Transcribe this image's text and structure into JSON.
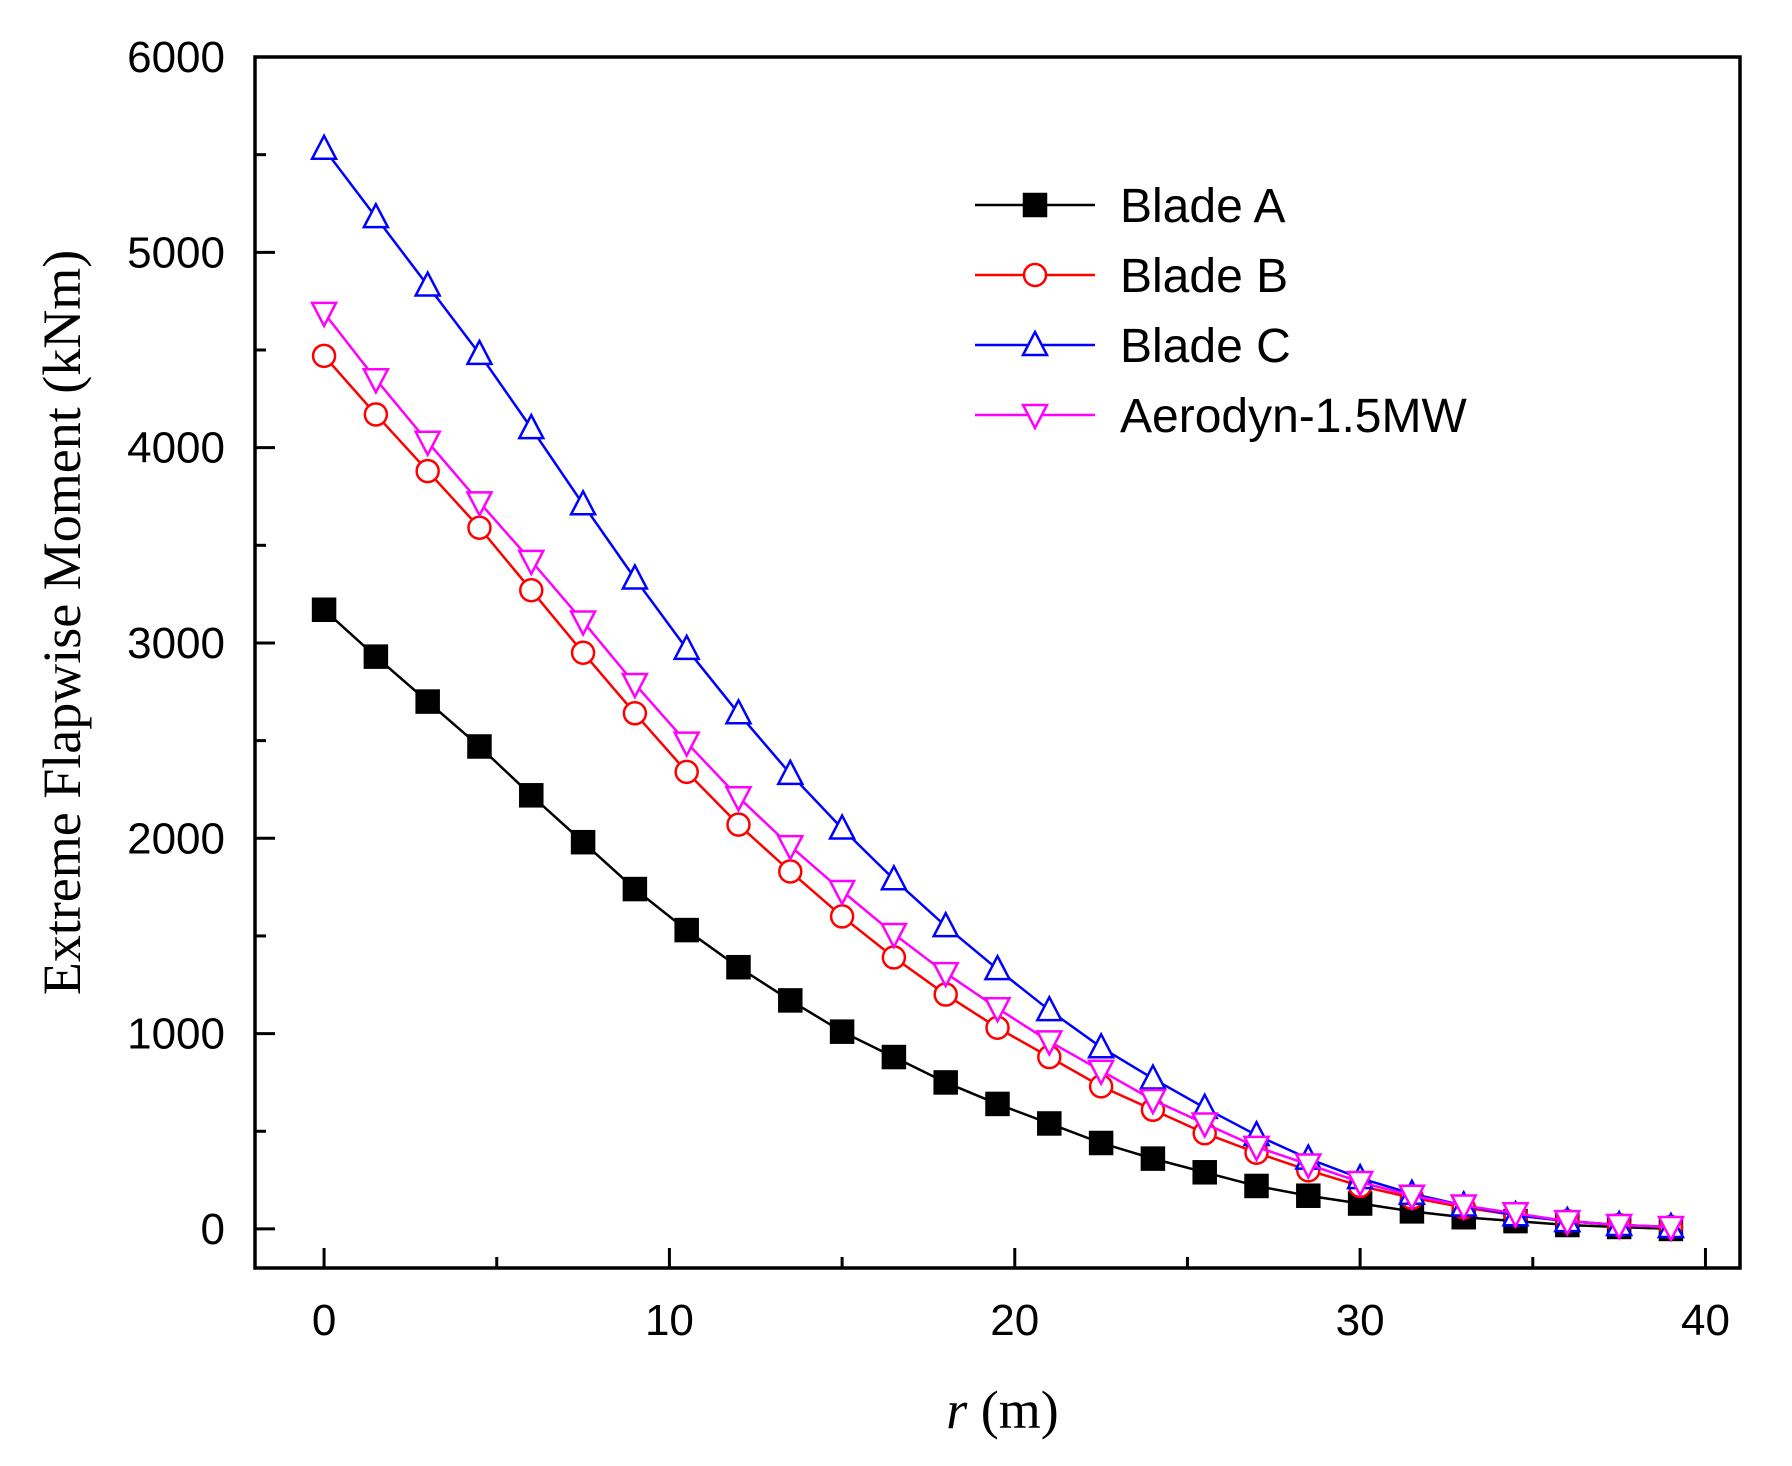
{
  "chart_data": {
    "type": "line",
    "title": "",
    "xlabel_var": "r",
    "xlabel_unit": " (m)",
    "ylabel": "Extreme Flapwise Moment (kNm)",
    "xlim": [
      -2,
      41
    ],
    "ylim": [
      -200,
      6000
    ],
    "xticks": [
      0,
      10,
      20,
      30,
      40
    ],
    "xtick_labels": [
      "0",
      "10",
      "20",
      "30",
      "40"
    ],
    "yticks": [
      0,
      1000,
      2000,
      3000,
      4000,
      5000,
      6000
    ],
    "ytick_labels": [
      "0",
      "1000",
      "2000",
      "3000",
      "4000",
      "5000",
      "6000"
    ],
    "grid": false,
    "legend_position": "top-right",
    "x": [
      0,
      1.5,
      3,
      4.5,
      6,
      7.5,
      9,
      10.5,
      12,
      13.5,
      15,
      16.5,
      18,
      19.5,
      21,
      22.5,
      24,
      25.5,
      27,
      28.5,
      30,
      31.5,
      33,
      34.5,
      36,
      37.5,
      39
    ],
    "series": [
      {
        "name": "Blade A",
        "color": "#000000",
        "marker": "filled-square",
        "values": [
          3170,
          2930,
          2700,
          2470,
          2220,
          1980,
          1740,
          1530,
          1340,
          1170,
          1010,
          880,
          750,
          640,
          540,
          440,
          360,
          290,
          220,
          170,
          130,
          90,
          60,
          40,
          20,
          10,
          0
        ]
      },
      {
        "name": "Blade B",
        "color": "#ff0000",
        "marker": "open-circle",
        "values": [
          4470,
          4170,
          3880,
          3590,
          3270,
          2950,
          2640,
          2340,
          2070,
          1830,
          1600,
          1390,
          1200,
          1030,
          880,
          730,
          610,
          490,
          390,
          300,
          220,
          160,
          110,
          70,
          40,
          20,
          10
        ]
      },
      {
        "name": "Blade C",
        "color": "#0000ff",
        "marker": "open-triangle-up",
        "values": [
          5530,
          5180,
          4830,
          4480,
          4100,
          3710,
          3330,
          2970,
          2640,
          2330,
          2050,
          1790,
          1550,
          1330,
          1120,
          930,
          770,
          620,
          480,
          360,
          260,
          180,
          120,
          70,
          40,
          20,
          10
        ]
      },
      {
        "name": "Aerodyn-1.5MW",
        "color": "#ff00ff",
        "marker": "open-triangle-down",
        "values": [
          4690,
          4350,
          4030,
          3720,
          3420,
          3110,
          2790,
          2490,
          2210,
          1960,
          1730,
          1510,
          1310,
          1130,
          960,
          810,
          660,
          540,
          420,
          330,
          240,
          170,
          120,
          80,
          40,
          20,
          10
        ]
      }
    ]
  }
}
